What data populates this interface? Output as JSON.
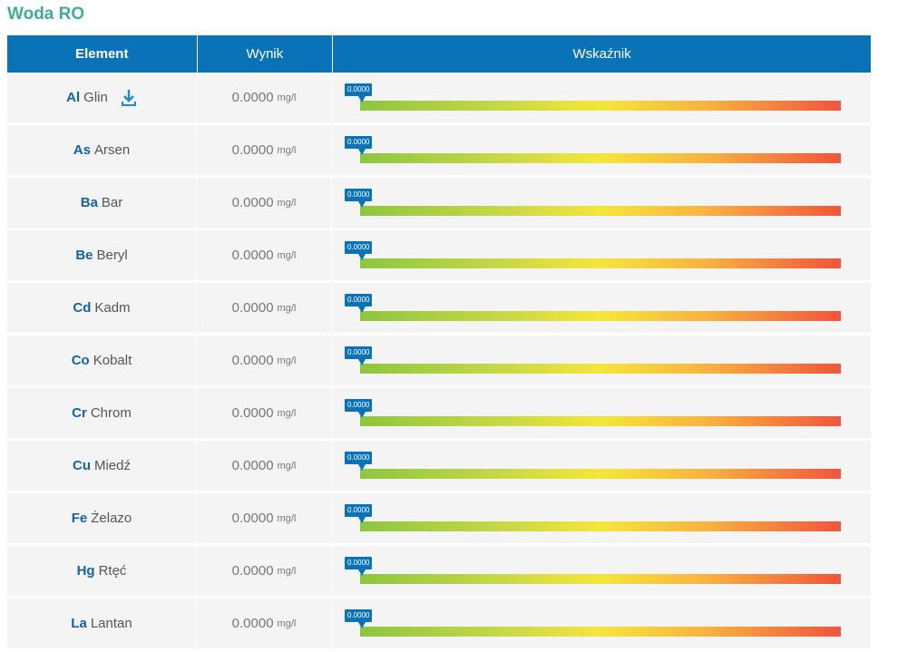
{
  "title": "Woda RO",
  "headers": {
    "element": "Element",
    "result": "Wynik",
    "indicator": "Wskaźnik"
  },
  "colors": {
    "header_bg": "#0a73b7",
    "title": "#3fae8e",
    "symbol": "#1464a5"
  },
  "rows": [
    {
      "symbol": "Al",
      "name": "Glin",
      "value": "0.0000",
      "unit": "mg/l",
      "marker": "0.0000",
      "marker_fraction": 0
    },
    {
      "symbol": "As",
      "name": "Arsen",
      "value": "0.0000",
      "unit": "mg/l",
      "marker": "0.0000",
      "marker_fraction": 0
    },
    {
      "symbol": "Ba",
      "name": "Bar",
      "value": "0.0000",
      "unit": "mg/l",
      "marker": "0.0000",
      "marker_fraction": 0
    },
    {
      "symbol": "Be",
      "name": "Beryl",
      "value": "0.0000",
      "unit": "mg/l",
      "marker": "0.0000",
      "marker_fraction": 0
    },
    {
      "symbol": "Cd",
      "name": "Kadm",
      "value": "0.0000",
      "unit": "mg/l",
      "marker": "0.0000",
      "marker_fraction": 0
    },
    {
      "symbol": "Co",
      "name": "Kobalt",
      "value": "0.0000",
      "unit": "mg/l",
      "marker": "0.0000",
      "marker_fraction": 0
    },
    {
      "symbol": "Cr",
      "name": "Chrom",
      "value": "0.0000",
      "unit": "mg/l",
      "marker": "0.0000",
      "marker_fraction": 0
    },
    {
      "symbol": "Cu",
      "name": "Miedź",
      "value": "0.0000",
      "unit": "mg/l",
      "marker": "0.0000",
      "marker_fraction": 0
    },
    {
      "symbol": "Fe",
      "name": "Żelazo",
      "value": "0.0000",
      "unit": "mg/l",
      "marker": "0.0000",
      "marker_fraction": 0
    },
    {
      "symbol": "Hg",
      "name": "Rtęć",
      "value": "0.0000",
      "unit": "mg/l",
      "marker": "0.0000",
      "marker_fraction": 0
    },
    {
      "symbol": "La",
      "name": "Lantan",
      "value": "0.0000",
      "unit": "mg/l",
      "marker": "0.0000",
      "marker_fraction": 0
    }
  ]
}
